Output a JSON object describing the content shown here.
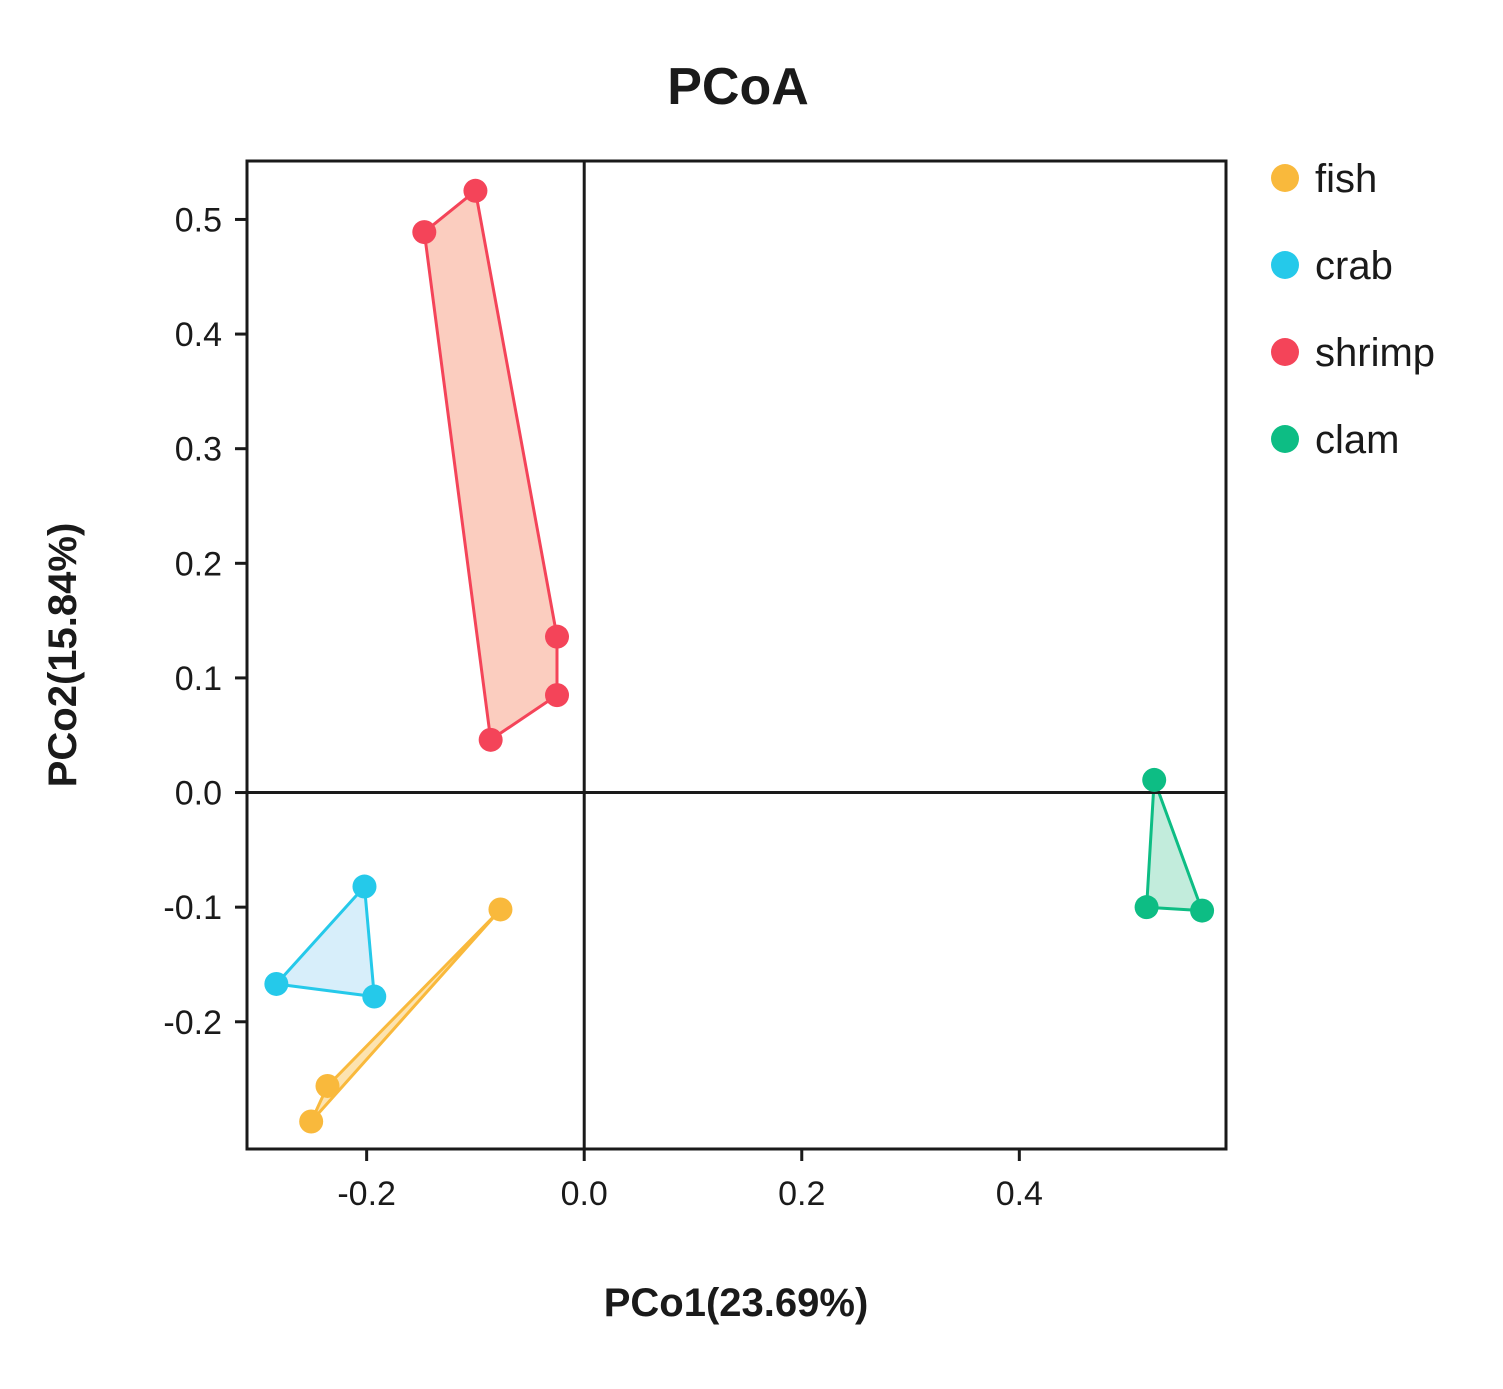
{
  "chart_data": {
    "type": "scatter",
    "title": "PCoA",
    "xlabel": "PCo1(23.69%)",
    "ylabel": "PCo2(15.84%)",
    "xlim": [
      -0.31,
      0.59
    ],
    "ylim": [
      -0.311,
      0.551
    ],
    "xticks": [
      -0.2,
      0.0,
      0.2,
      0.4
    ],
    "xtick_labels": [
      "-0.2",
      "0.0",
      "0.2",
      "0.4"
    ],
    "yticks": [
      -0.2,
      -0.1,
      0.0,
      0.1,
      0.2,
      0.3,
      0.4,
      0.5
    ],
    "ytick_labels": [
      "-0.2",
      "-0.1",
      "0.0",
      "0.1",
      "0.2",
      "0.3",
      "0.4",
      "0.5"
    ],
    "reference_lines": {
      "x": 0.0,
      "y": 0.0
    },
    "grid": false,
    "legend_position": "right-top",
    "series": [
      {
        "name": "fish",
        "color": "#F9B93C",
        "fill": "#FCE3B0",
        "points": [
          [
            -0.077,
            -0.102
          ],
          [
            -0.236,
            -0.256
          ],
          [
            -0.251,
            -0.287
          ]
        ],
        "hull": [
          [
            -0.077,
            -0.102
          ],
          [
            -0.236,
            -0.256
          ],
          [
            -0.251,
            -0.287
          ]
        ]
      },
      {
        "name": "crab",
        "color": "#25C9EA",
        "fill": "#D7EEFA",
        "points": [
          [
            -0.202,
            -0.082
          ],
          [
            -0.283,
            -0.167
          ],
          [
            -0.193,
            -0.178
          ]
        ],
        "hull": [
          [
            -0.202,
            -0.082
          ],
          [
            -0.283,
            -0.167
          ],
          [
            -0.193,
            -0.178
          ]
        ]
      },
      {
        "name": "shrimp",
        "color": "#F44459",
        "fill": "#FBCDBF",
        "points": [
          [
            -0.1,
            0.525
          ],
          [
            -0.147,
            0.489
          ],
          [
            -0.025,
            0.136
          ],
          [
            -0.025,
            0.085
          ],
          [
            -0.086,
            0.046
          ]
        ],
        "hull": [
          [
            -0.1,
            0.525
          ],
          [
            -0.147,
            0.489
          ],
          [
            -0.086,
            0.046
          ],
          [
            -0.025,
            0.085
          ],
          [
            -0.025,
            0.136
          ]
        ]
      },
      {
        "name": "clam",
        "color": "#0DBD84",
        "fill": "#C2ECDC",
        "points": [
          [
            0.524,
            0.011
          ],
          [
            0.517,
            -0.1
          ],
          [
            0.568,
            -0.103
          ]
        ],
        "hull": [
          [
            0.524,
            0.011
          ],
          [
            0.517,
            -0.1
          ],
          [
            0.568,
            -0.103
          ]
        ]
      }
    ]
  }
}
